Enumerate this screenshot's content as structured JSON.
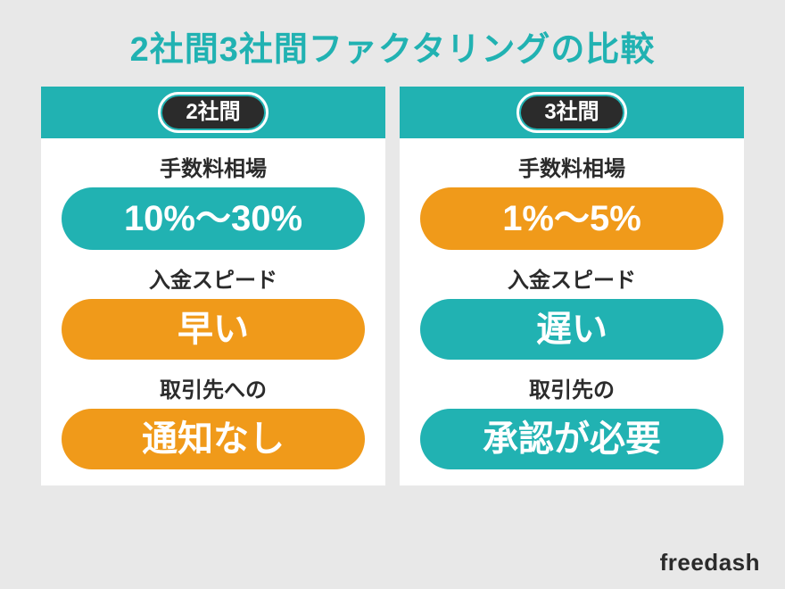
{
  "colors": {
    "teal": "#21b2b2",
    "orange": "#f09a1a",
    "titleColor": "#21b2b2",
    "panelBg": "#ffffff",
    "pageBg": "#e8e8e8",
    "badgeBg": "#2b2b2b",
    "badgeBorder": "#ffffff",
    "textDark": "#2b2b2b",
    "pillText": "#ffffff"
  },
  "title": "2社間3社間ファクタリングの比較",
  "panels": [
    {
      "badge": "2社間",
      "headerBg": "teal",
      "sections": [
        {
          "label": "手数料相場",
          "value": "10%〜30%",
          "pillColor": "teal",
          "pillClass": "pill-fee"
        },
        {
          "label": "入金スピード",
          "value": "早い",
          "pillColor": "orange",
          "pillClass": "pill-speed"
        },
        {
          "label": "取引先への",
          "value": "通知なし",
          "pillColor": "orange",
          "pillClass": "pill-notice"
        }
      ]
    },
    {
      "badge": "3社間",
      "headerBg": "teal",
      "sections": [
        {
          "label": "手数料相場",
          "value": "1%〜5%",
          "pillColor": "orange",
          "pillClass": "pill-fee"
        },
        {
          "label": "入金スピード",
          "value": "遅い",
          "pillColor": "teal",
          "pillClass": "pill-speed"
        },
        {
          "label": "取引先の",
          "value": "承認が必要",
          "pillColor": "teal",
          "pillClass": "pill-notice"
        }
      ]
    }
  ],
  "brand": "freedash"
}
